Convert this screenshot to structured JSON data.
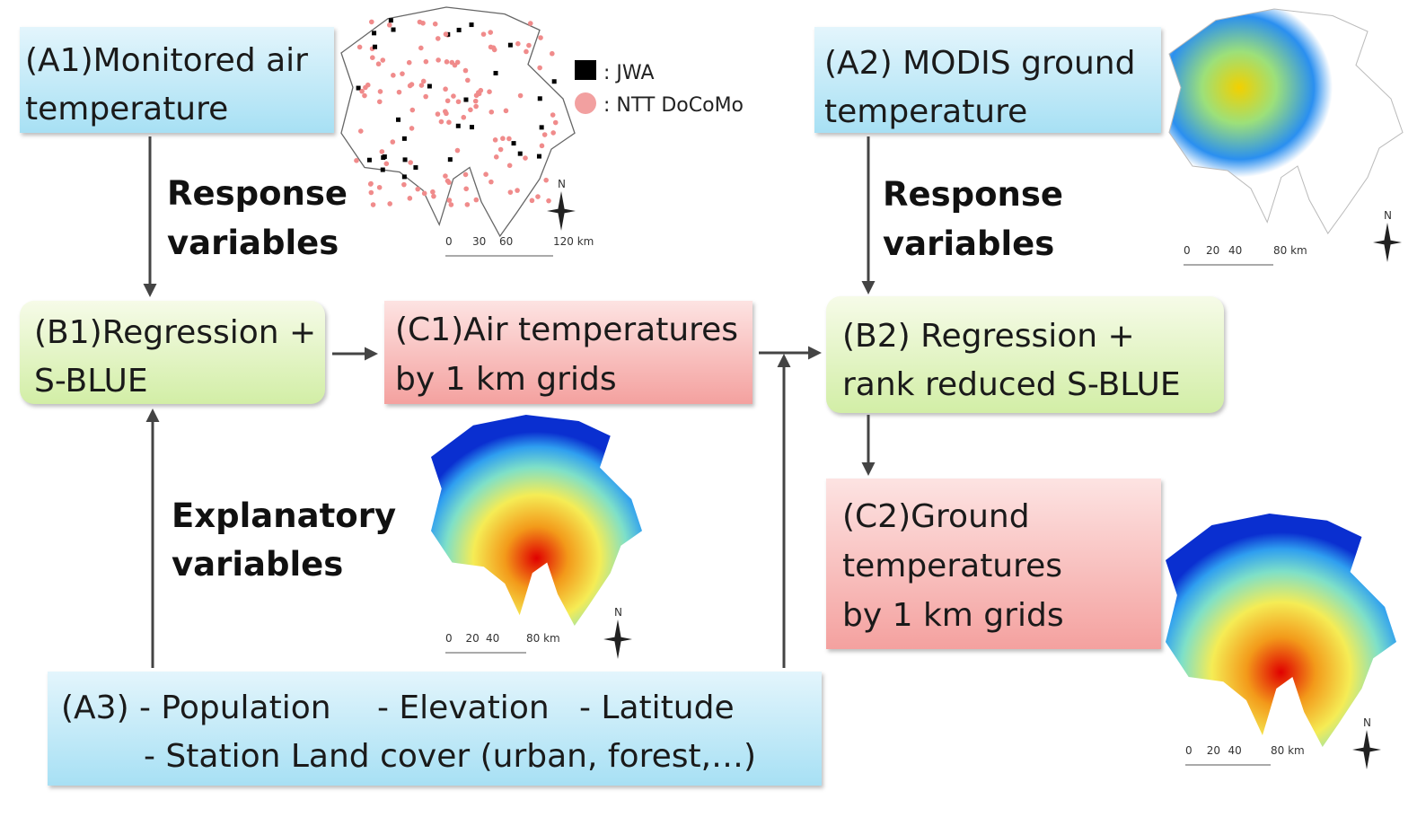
{
  "nodes": [
    {
      "id": "A1",
      "lines": [
        "(A1)Monitored air",
        "temperature"
      ]
    },
    {
      "id": "A2",
      "lines": [
        "(A2) MODIS ground",
        "temperature"
      ]
    },
    {
      "id": "B1",
      "lines": [
        "(B1)Regression +",
        "S-BLUE"
      ]
    },
    {
      "id": "C1",
      "lines": [
        "(C1)Air temperatures",
        "by 1 km grids"
      ]
    },
    {
      "id": "B2",
      "lines": [
        "(B2) Regression +",
        "rank reduced S-BLUE"
      ]
    },
    {
      "id": "C2",
      "lines": [
        "(C2)Ground",
        "temperatures",
        "by 1 km grids"
      ]
    },
    {
      "id": "A3",
      "items": [
        "(A3)",
        "- Population",
        "- Elevation",
        "- Latitude",
        "- Station Land cover (urban, forest,…)"
      ]
    }
  ],
  "edge_labels": [
    {
      "lines": [
        "Response",
        "variables"
      ]
    },
    {
      "lines": [
        "Response",
        "variables"
      ]
    },
    {
      "lines": [
        "Explanatory",
        "variables"
      ]
    }
  ],
  "legend": [
    ": JWA",
    ": NTT DoCoMo"
  ],
  "maps": [
    {
      "scale": [
        "0",
        "30",
        "60",
        "120 km"
      ],
      "north": "N"
    },
    {
      "scale": [
        "0",
        "20",
        "40",
        "80 km"
      ],
      "north": "N"
    },
    {
      "scale": [
        "0",
        "20",
        "40",
        "80 km"
      ],
      "north": "N"
    },
    {
      "scale": [
        "0",
        "20",
        "40",
        "80 km"
      ],
      "north": "N"
    }
  ]
}
